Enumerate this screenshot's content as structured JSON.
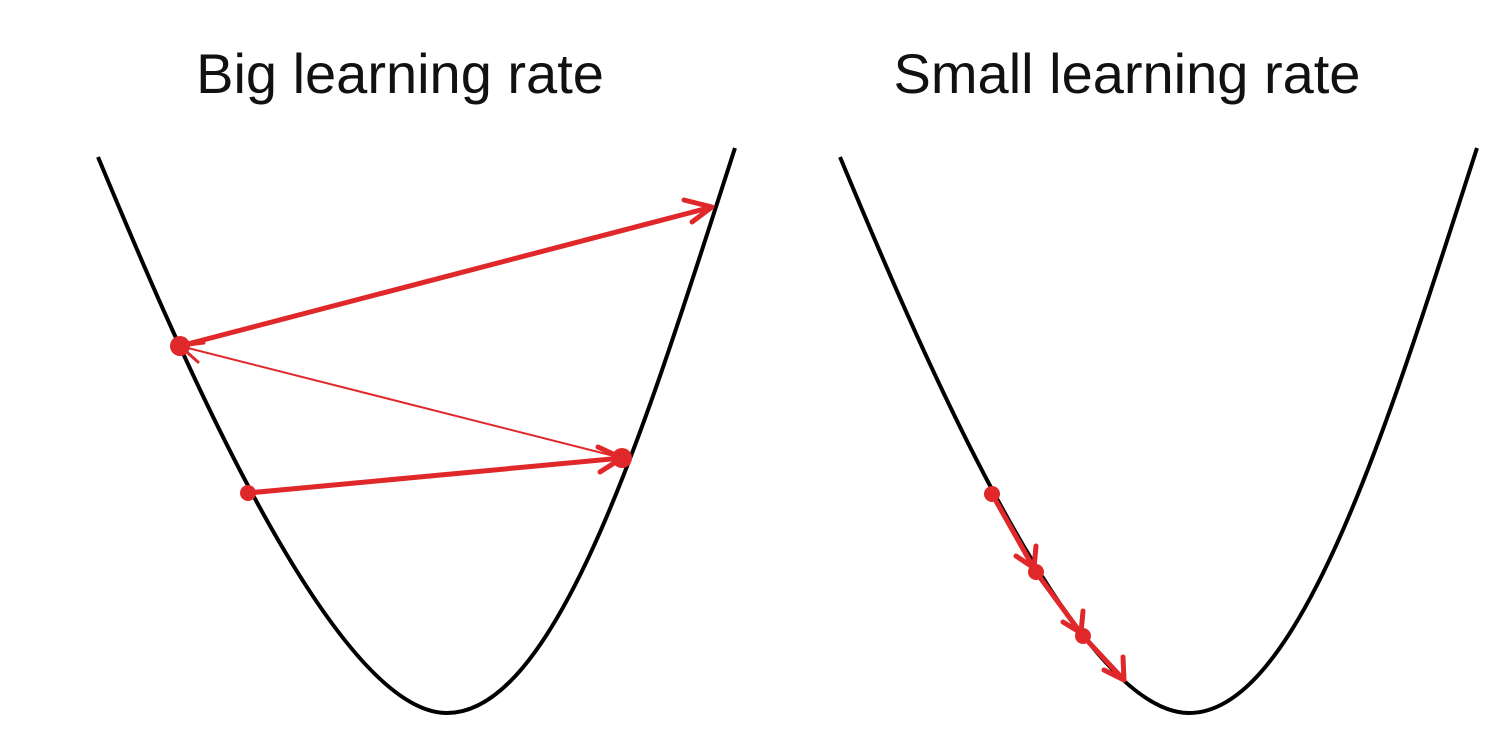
{
  "panels": {
    "big": {
      "title": "Big learning rate"
    },
    "small": {
      "title": "Small learning rate"
    }
  },
  "colors": {
    "curve": "#000000",
    "step": "#e0282a",
    "background": "#ffffff",
    "text": "#111111"
  }
}
